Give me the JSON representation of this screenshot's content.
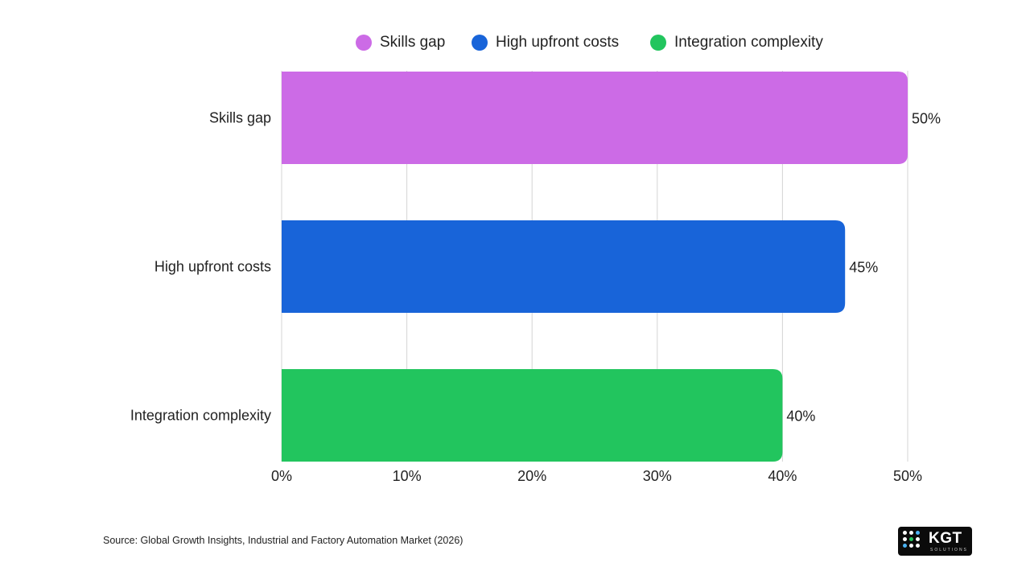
{
  "chart_data": {
    "type": "bar",
    "orientation": "horizontal",
    "categories": [
      "Skills gap",
      "High upfront costs",
      "Integration complexity"
    ],
    "values": [
      50,
      45,
      40
    ],
    "value_labels": [
      "50%",
      "45%",
      "40%"
    ],
    "colors": [
      "#cc6be6",
      "#1864d9",
      "#22c55e"
    ],
    "xlim": [
      0,
      50
    ],
    "x_ticks": [
      "0%",
      "10%",
      "20%",
      "30%",
      "40%",
      "50%"
    ],
    "grid": true,
    "legend": {
      "placement": "top-center",
      "items": [
        {
          "label": "Skills gap",
          "color": "#cc6be6"
        },
        {
          "label": "High upfront costs",
          "color": "#1864d9"
        },
        {
          "label": "Integration complexity",
          "color": "#22c55e"
        }
      ]
    }
  },
  "footer": {
    "source": "Source: Global Growth Insights, Industrial and Factory Automation Market (2026)"
  },
  "logo": {
    "text": "KGT",
    "subtext": "SOLUTIONS"
  }
}
